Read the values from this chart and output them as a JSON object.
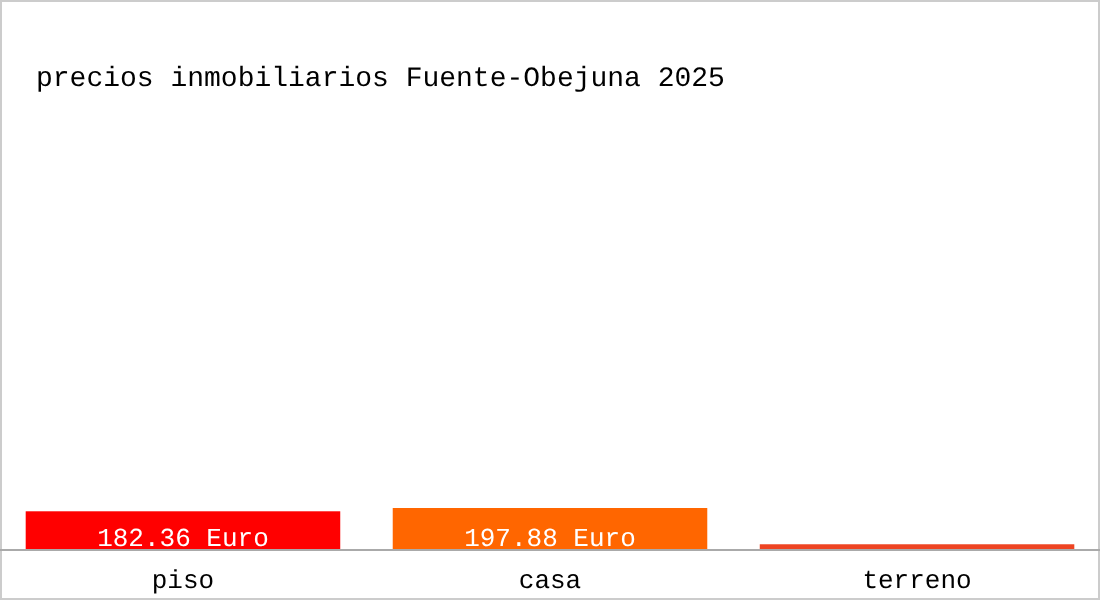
{
  "chart_data": {
    "type": "bar",
    "title": "precios inmobiliarios Fuente-Obejuna 2025",
    "categories": [
      "piso",
      "casa",
      "terreno"
    ],
    "values": [
      182.36,
      197.88,
      27
    ],
    "colors": [
      "#ff0000",
      "#ff6600",
      "#ee4422"
    ],
    "value_labels": [
      "182.36 Euro",
      "197.88 Euro",
      null
    ]
  }
}
